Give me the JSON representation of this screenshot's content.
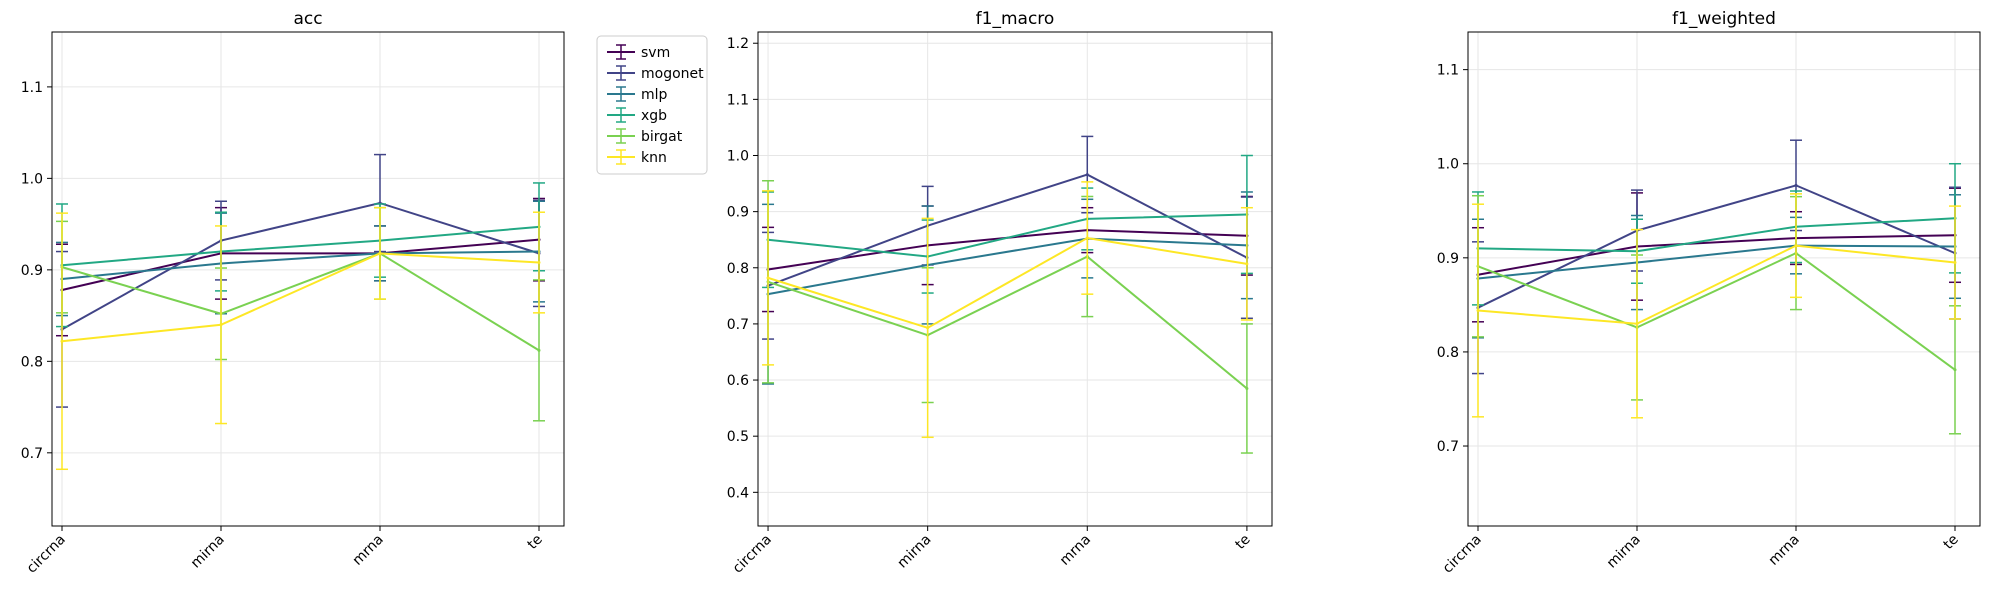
{
  "chart_data": [
    {
      "type": "line",
      "title": "acc",
      "xlabel": "",
      "ylabel": "",
      "categories": [
        "circrna",
        "mirna",
        "mrna",
        "te"
      ],
      "ylim": [
        0.62,
        1.16
      ],
      "yticks": [
        "0.7",
        "0.8",
        "0.9",
        "1.0",
        "1.1"
      ],
      "grid": true,
      "legend": "right, outside the plot",
      "series": [
        {
          "name": "svm",
          "color": "#440154",
          "values": [
            0.878,
            0.918,
            0.918,
            0.933
          ],
          "err": [
            0.05,
            0.05,
            0.03,
            0.045
          ]
        },
        {
          "name": "mogonet",
          "color": "#414487",
          "values": [
            0.835,
            0.932,
            0.973,
            0.918
          ],
          "err": [
            0.085,
            0.043,
            0.053,
            0.058
          ]
        },
        {
          "name": "mlp",
          "color": "#2a788e",
          "values": [
            0.89,
            0.907,
            0.918,
            0.92
          ],
          "err": [
            0.04,
            0.055,
            0.03,
            0.055
          ]
        },
        {
          "name": "xgb",
          "color": "#22a884",
          "values": [
            0.905,
            0.92,
            0.932,
            0.947
          ],
          "err": [
            0.067,
            0.043,
            0.04,
            0.048
          ]
        },
        {
          "name": "birgat",
          "color": "#7ad151",
          "values": [
            0.903,
            0.852,
            0.918,
            0.812
          ],
          "err": [
            0.05,
            0.05,
            0.05,
            0.077
          ]
        },
        {
          "name": "knn",
          "color": "#fde725",
          "values": [
            0.822,
            0.84,
            0.918,
            0.908
          ],
          "err": [
            0.14,
            0.108,
            0.05,
            0.055
          ]
        }
      ]
    },
    {
      "type": "line",
      "title": "f1_macro",
      "xlabel": "",
      "ylabel": "",
      "categories": [
        "circrna",
        "mirna",
        "mrna",
        "te"
      ],
      "ylim": [
        0.34,
        1.22
      ],
      "yticks": [
        "0.4",
        "0.5",
        "0.6",
        "0.7",
        "0.8",
        "0.9",
        "1.0",
        "1.1",
        "1.2"
      ],
      "grid": true,
      "series": [
        {
          "name": "svm",
          "color": "#440154",
          "values": [
            0.797,
            0.84,
            0.867,
            0.857
          ],
          "err": [
            0.075,
            0.07,
            0.04,
            0.07
          ]
        },
        {
          "name": "mogonet",
          "color": "#414487",
          "values": [
            0.768,
            0.875,
            0.966,
            0.818
          ],
          "err": [
            0.095,
            0.07,
            0.068,
            0.108
          ]
        },
        {
          "name": "mlp",
          "color": "#2a788e",
          "values": [
            0.753,
            0.805,
            0.852,
            0.84
          ],
          "err": [
            0.16,
            0.105,
            0.07,
            0.095
          ]
        },
        {
          "name": "xgb",
          "color": "#22a884",
          "values": [
            0.85,
            0.82,
            0.887,
            0.895
          ],
          "err": [
            0.085,
            0.065,
            0.055,
            0.105
          ]
        },
        {
          "name": "birgat",
          "color": "#7ad151",
          "values": [
            0.775,
            0.68,
            0.82,
            0.585
          ],
          "err": [
            0.18,
            0.12,
            0.107,
            0.115
          ]
        },
        {
          "name": "knn",
          "color": "#fde725",
          "values": [
            0.782,
            0.693,
            0.853,
            0.807
          ],
          "err": [
            0.155,
            0.195,
            0.1,
            0.1
          ]
        }
      ]
    },
    {
      "type": "line",
      "title": "f1_weighted",
      "xlabel": "",
      "ylabel": "",
      "categories": [
        "circrna",
        "mirna",
        "mrna",
        "te"
      ],
      "ylim": [
        0.615,
        1.14
      ],
      "yticks": [
        "0.7",
        "0.8",
        "0.9",
        "1.0",
        "1.1"
      ],
      "grid": true,
      "series": [
        {
          "name": "svm",
          "color": "#440154",
          "values": [
            0.882,
            0.912,
            0.921,
            0.924
          ],
          "err": [
            0.05,
            0.057,
            0.028,
            0.05
          ]
        },
        {
          "name": "mogonet",
          "color": "#414487",
          "values": [
            0.847,
            0.929,
            0.977,
            0.905
          ],
          "err": [
            0.07,
            0.043,
            0.048,
            0.07
          ]
        },
        {
          "name": "mlp",
          "color": "#2a788e",
          "values": [
            0.878,
            0.895,
            0.913,
            0.912
          ],
          "err": [
            0.063,
            0.05,
            0.03,
            0.055
          ]
        },
        {
          "name": "xgb",
          "color": "#22a884",
          "values": [
            0.91,
            0.907,
            0.933,
            0.942
          ],
          "err": [
            0.06,
            0.034,
            0.038,
            0.058
          ]
        },
        {
          "name": "birgat",
          "color": "#7ad151",
          "values": [
            0.891,
            0.826,
            0.905,
            0.781
          ],
          "err": [
            0.075,
            0.077,
            0.06,
            0.068
          ]
        },
        {
          "name": "knn",
          "color": "#fde725",
          "values": [
            0.844,
            0.83,
            0.913,
            0.895
          ],
          "err": [
            0.113,
            0.1,
            0.055,
            0.06
          ]
        }
      ]
    }
  ]
}
